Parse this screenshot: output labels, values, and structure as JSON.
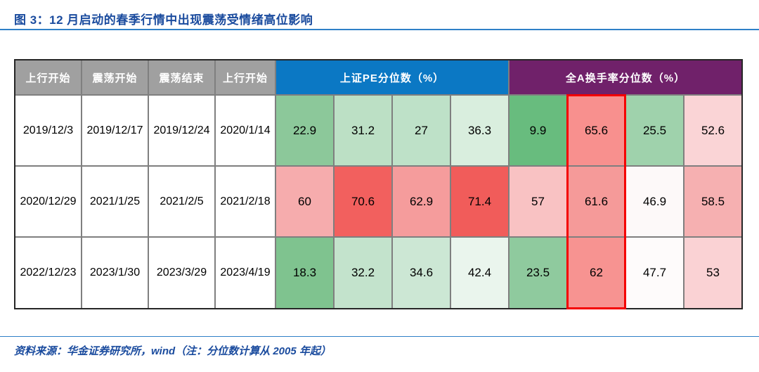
{
  "title": "图 3：12 月启动的春季行情中出现震荡受情绪高位影响",
  "source_note": "资料来源：华金证券研究所，wind（注：分位数计算从 2005 年起）",
  "colors": {
    "title_blue": "#1A4B9E",
    "rule_blue": "#2E80C8",
    "header_gray": "#A0A0A0",
    "header_blue": "#0B78C4",
    "header_purple": "#70216A",
    "grid_line": "#7F7F7F",
    "outer_border": "#262626",
    "highlight_red": "#F40000"
  },
  "table": {
    "date_headers": [
      "上行开始",
      "震荡开始",
      "震荡结束",
      "上行开始"
    ],
    "group_headers": [
      {
        "label": "上证PE分位数（%）",
        "color": "#0B78C4"
      },
      {
        "label": "全A换手率分位数（%）",
        "color": "#70216A"
      }
    ],
    "rows": [
      {
        "cells": [
          {
            "v": "2019/12/3",
            "bg": "#FFFFFF"
          },
          {
            "v": "2019/12/17",
            "bg": "#FFFFFF"
          },
          {
            "v": "2019/12/24",
            "bg": "#FFFFFF"
          },
          {
            "v": "2020/1/14",
            "bg": "#FFFFFF"
          },
          {
            "v": "22.9",
            "bg": "#8CC89A"
          },
          {
            "v": "31.2",
            "bg": "#BCE0C5"
          },
          {
            "v": "27",
            "bg": "#BEE1C8"
          },
          {
            "v": "36.3",
            "bg": "#D9EEDE"
          },
          {
            "v": "9.9",
            "bg": "#68BC7E"
          },
          {
            "v": "65.6",
            "bg": "#F8908E"
          },
          {
            "v": "25.5",
            "bg": "#9FD2AC"
          },
          {
            "v": "52.6",
            "bg": "#FAD4D6"
          }
        ]
      },
      {
        "cells": [
          {
            "v": "2020/12/29",
            "bg": "#FFFFFF"
          },
          {
            "v": "2021/1/25",
            "bg": "#FFFFFF"
          },
          {
            "v": "2021/2/5",
            "bg": "#FFFFFF"
          },
          {
            "v": "2021/2/18",
            "bg": "#FFFFFF"
          },
          {
            "v": "60",
            "bg": "#F6ACAD"
          },
          {
            "v": "70.6",
            "bg": "#F2605E"
          },
          {
            "v": "62.9",
            "bg": "#F59C9C"
          },
          {
            "v": "71.4",
            "bg": "#F15C5A"
          },
          {
            "v": "57",
            "bg": "#F9C2C3"
          },
          {
            "v": "61.6",
            "bg": "#F59A99"
          },
          {
            "v": "46.9",
            "bg": "#FDF9F9"
          },
          {
            "v": "58.5",
            "bg": "#F6B0B1"
          }
        ]
      },
      {
        "cells": [
          {
            "v": "2022/12/23",
            "bg": "#FFFFFF"
          },
          {
            "v": "2023/1/30",
            "bg": "#FFFFFF"
          },
          {
            "v": "2023/3/29",
            "bg": "#FFFFFF"
          },
          {
            "v": "2023/4/19",
            "bg": "#FFFFFF"
          },
          {
            "v": "18.3",
            "bg": "#7FC38F"
          },
          {
            "v": "32.2",
            "bg": "#C3E3CC"
          },
          {
            "v": "34.6",
            "bg": "#CCE7D4"
          },
          {
            "v": "42.4",
            "bg": "#EAF5ED"
          },
          {
            "v": "23.5",
            "bg": "#8FCA9E"
          },
          {
            "v": "62",
            "bg": "#F79391"
          },
          {
            "v": "47.7",
            "bg": "#FEFBFB"
          },
          {
            "v": "53",
            "bg": "#FAD2D4"
          }
        ]
      }
    ]
  }
}
